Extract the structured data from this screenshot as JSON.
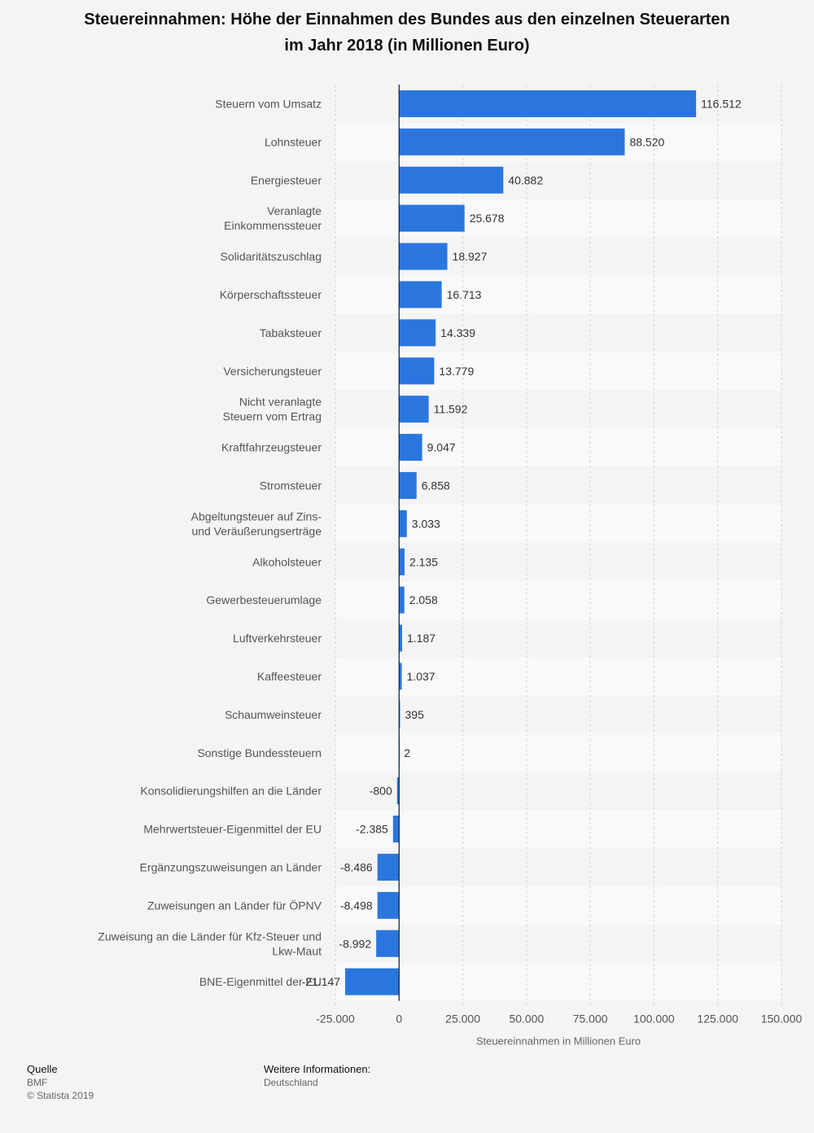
{
  "chart_data": {
    "type": "bar",
    "orientation": "horizontal",
    "title_lines": [
      "Steuereinnahmen: Höhe der Einnahmen des Bundes aus den einzelnen Steuerarten",
      "im Jahr 2018 (in Millionen Euro)"
    ],
    "categories": [
      [
        "Steuern vom Umsatz"
      ],
      [
        "Lohnsteuer"
      ],
      [
        "Energiesteuer"
      ],
      [
        "Veranlagte",
        "Einkommenssteuer"
      ],
      [
        "Solidaritätszuschlag"
      ],
      [
        "Körperschaftssteuer"
      ],
      [
        "Tabaksteuer"
      ],
      [
        "Versicherungsteuer"
      ],
      [
        "Nicht veranlagte",
        "Steuern vom Ertrag"
      ],
      [
        "Kraftfahrzeugsteuer"
      ],
      [
        "Stromsteuer"
      ],
      [
        "Abgeltungsteuer auf Zins-",
        "und Veräußerungserträge"
      ],
      [
        "Alkoholsteuer"
      ],
      [
        "Gewerbesteuerumlage"
      ],
      [
        "Luftverkehrsteuer"
      ],
      [
        "Kaffeesteuer"
      ],
      [
        "Schaumweinsteuer"
      ],
      [
        "Sonstige Bundessteuern"
      ],
      [
        "Konsolidierungshilfen an die Länder"
      ],
      [
        "Mehrwertsteuer-Eigenmittel der EU"
      ],
      [
        "Ergänzungszuweisungen an Länder"
      ],
      [
        "Zuweisungen an Länder für ÖPNV"
      ],
      [
        "Zuweisung an die Länder für Kfz-Steuer und",
        "Lkw-Maut"
      ],
      [
        "BNE-Eigenmittel der EU"
      ]
    ],
    "values": [
      116512,
      88520,
      40882,
      25678,
      18927,
      16713,
      14339,
      13779,
      11592,
      9047,
      6858,
      3033,
      2135,
      2058,
      1187,
      1037,
      395,
      2,
      -800,
      -2385,
      -8486,
      -8498,
      -8992,
      -21147
    ],
    "value_labels": [
      "116.512",
      "88.520",
      "40.882",
      "25.678",
      "18.927",
      "16.713",
      "14.339",
      "13.779",
      "11.592",
      "9.047",
      "6.858",
      "3.033",
      "2.135",
      "2.058",
      "1.187",
      "1.037",
      "395",
      "2",
      "-800",
      "-2.385",
      "-8.486",
      "-8.498",
      "-8.992",
      "-21.147"
    ],
    "xlim": [
      -25000,
      150000
    ],
    "ticks": [
      -25000,
      0,
      25000,
      50000,
      75000,
      100000,
      125000,
      150000
    ],
    "tick_labels": [
      "-25.000",
      "0",
      "25.000",
      "50.000",
      "75.000",
      "100.000",
      "125.000",
      "150.000"
    ],
    "xlabel": "Steuereinnahmen in Millionen Euro",
    "ylabel": "",
    "bar_color": "#2b76de",
    "grid": true
  },
  "footer": {
    "source_heading": "Quelle",
    "source": "BMF",
    "copyright": "© Statista 2019",
    "info_heading": "Weitere Informationen:",
    "info": "Deutschland"
  }
}
